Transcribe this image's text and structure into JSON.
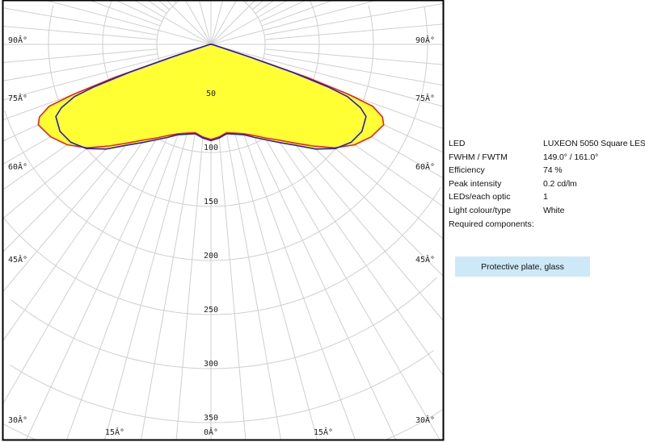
{
  "chart_data": {
    "type": "polar",
    "radial_ticks": [
      "50",
      "100",
      "150",
      "200",
      "250",
      "300",
      "350"
    ],
    "radial_range": [
      0,
      350
    ],
    "angle_labels": {
      "left": [
        "90Â°",
        "75Â°",
        "60Â°",
        "45Â°",
        "30Â°"
      ],
      "right": [
        "90Â°",
        "75Â°",
        "60Â°",
        "45Â°",
        "30Â°"
      ],
      "bottom": [
        "15Â°",
        "0Â°",
        "15Â°"
      ]
    },
    "angles_deg": [
      0,
      5,
      10,
      15,
      20,
      25,
      30,
      35,
      40,
      45,
      50,
      55,
      60,
      65,
      67,
      69,
      70,
      71,
      72,
      75,
      80,
      85,
      90
    ],
    "series": [
      {
        "color": "#e52222",
        "values": [
          88,
          86,
          83,
          85,
          88,
          93,
          100,
          108,
          119,
          133,
          149,
          162,
          171,
          176,
          172,
          160,
          135,
          95,
          40,
          5,
          2,
          1,
          0
        ]
      },
      {
        "color": "#2020c0",
        "values": [
          89,
          87,
          84,
          86,
          89,
          95,
          102,
          111,
          122,
          137,
          150,
          158,
          161,
          158,
          150,
          135,
          115,
          80,
          35,
          5,
          2,
          1,
          0
        ]
      }
    ],
    "fill_color": "#ffff33",
    "grid": true
  },
  "info": {
    "rows": [
      {
        "label": "LED",
        "value": "LUXEON 5050 Square LES"
      },
      {
        "label": "FWHM / FWTM",
        "value": "149.0° / 161.0°"
      },
      {
        "label": "Efficiency",
        "value": "74 %"
      },
      {
        "label": "Peak intensity",
        "value": "0.2 cd/lm"
      },
      {
        "label": "LEDs/each optic",
        "value": "1"
      },
      {
        "label": "Light colour/type",
        "value": "White"
      },
      {
        "label": "Required components:",
        "value": ""
      }
    ],
    "component": "Protective plate, glass"
  }
}
